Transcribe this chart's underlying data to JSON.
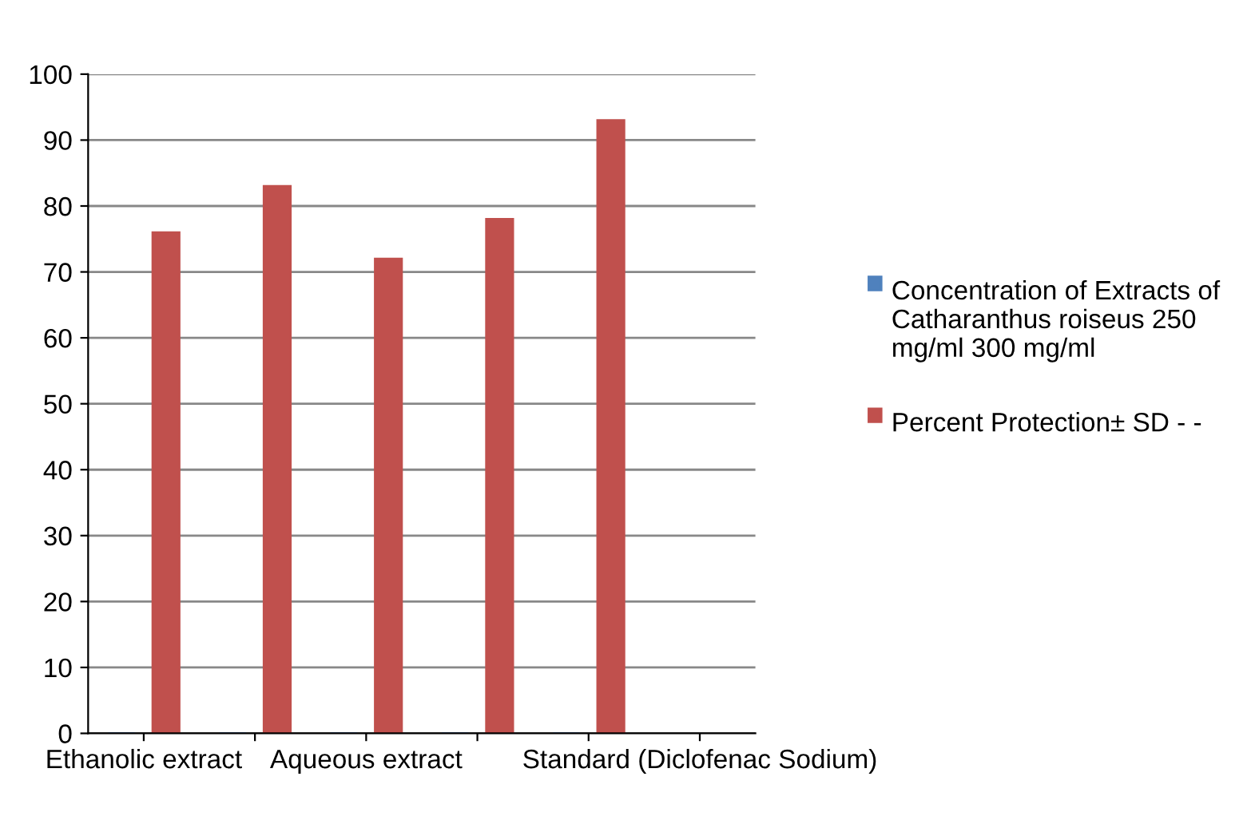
{
  "chart_data": {
    "type": "bar",
    "categories": [
      "Ethanolic extract",
      null,
      "Aqueous extract",
      null,
      null,
      "Standard (Diclofenac Sodium)"
    ],
    "series": [
      {
        "name": "Concentration of Extracts of Catharanthus roiseus 250 mg/ml 300 mg/ml",
        "color": "#4f81bd",
        "values": [
          0,
          0,
          0,
          0,
          0,
          null
        ]
      },
      {
        "name": "Percent Protection± SD - -",
        "color": "#c0504d",
        "values": [
          76,
          83,
          72,
          78,
          93,
          null
        ]
      }
    ],
    "ylim": [
      0,
      100
    ],
    "yticks": [
      0,
      10,
      20,
      30,
      40,
      50,
      60,
      70,
      80,
      90,
      100
    ],
    "grid": "y",
    "legend": "right"
  }
}
